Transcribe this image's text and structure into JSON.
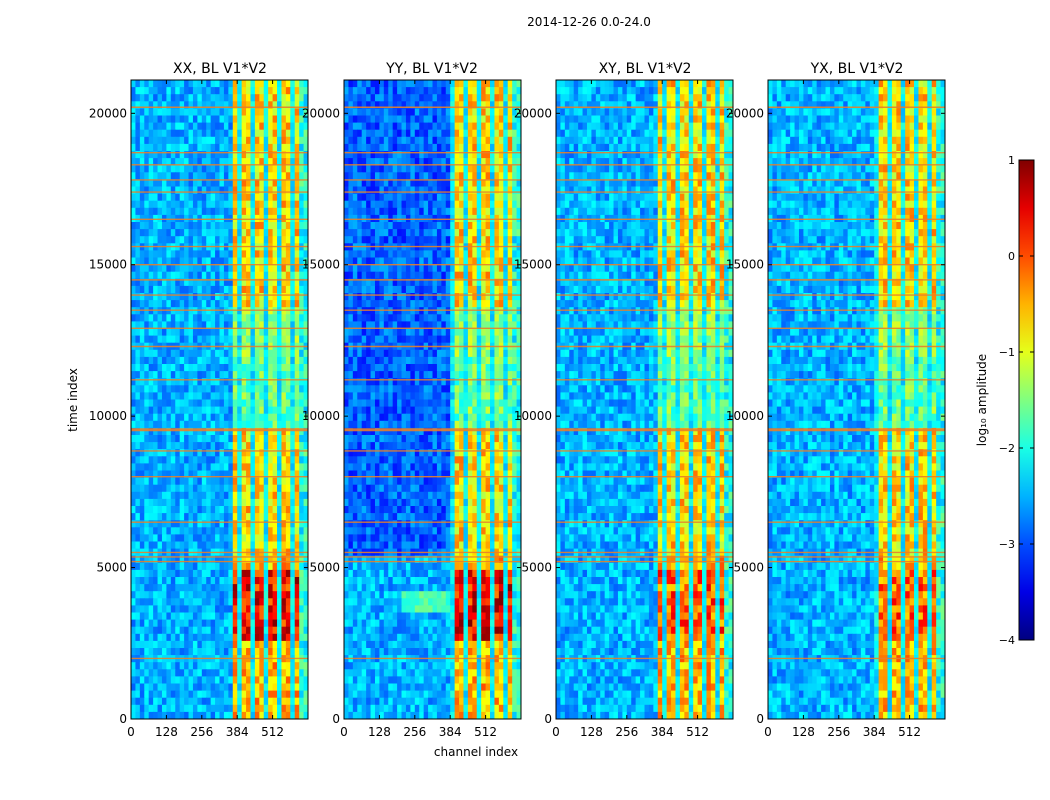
{
  "chart_data": {
    "type": "heatmap",
    "suptitle": "2014-12-26 0.0-24.0",
    "xlabel": "channel index",
    "ylabel": "time index",
    "x_ticks": [
      0,
      128,
      256,
      384,
      512
    ],
    "y_ticks": [
      0,
      5000,
      10000,
      15000,
      20000
    ],
    "x_range": [
      0,
      640
    ],
    "y_range": [
      0,
      21100
    ],
    "panels": [
      {
        "title": "XX, BL V1*V2",
        "pol": "XX",
        "strong_band_start": 384,
        "lower_peak": 1.0
      },
      {
        "title": "YY, BL V1*V2",
        "pol": "YY",
        "strong_band_start": 400,
        "lower_peak": 1.0
      },
      {
        "title": "XY, BL V1*V2",
        "pol": "XY",
        "strong_band_start": 384,
        "lower_peak": 0.9
      },
      {
        "title": "YX, BL V1*V2",
        "pol": "YX",
        "strong_band_start": 400,
        "lower_peak": 0.9
      }
    ],
    "rfi_band_channels": [
      384,
      640
    ],
    "flagged_rows": [
      2000,
      5200,
      5350,
      5500,
      6500,
      8000,
      8850,
      9550,
      11200,
      12300,
      12900,
      13500,
      14000,
      14500,
      15000,
      15600,
      16500,
      17400,
      17800,
      18300,
      18700,
      20200
    ],
    "colorbar": {
      "label": "log₁₀ amplitude",
      "min": -4,
      "max": 1,
      "ticks": [
        1,
        0,
        -1,
        -2,
        -3,
        -4
      ],
      "tick_labels": [
        "1",
        "0",
        "−1",
        "−2",
        "−3",
        "−4"
      ],
      "colormap": "jet"
    }
  }
}
